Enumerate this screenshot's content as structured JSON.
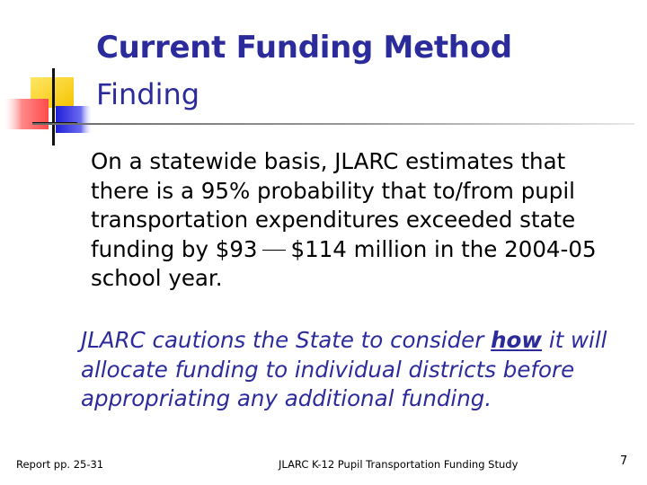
{
  "slide": {
    "title": "Current Funding Method",
    "subtitle": "Finding",
    "body": {
      "before_range": "On a statewide basis, JLARC estimates that there is a 95% probability that to/from pupil transportation expenditures exceeded state funding by $93",
      "after_range": "$114 million in the 2004-05 school year."
    },
    "caution": {
      "before": "JLARC cautions the State to consider ",
      "emphasis": "how",
      "after": " it will allocate funding to individual districts before appropriating any additional funding."
    },
    "footer": {
      "left": "Report pp. 25-31",
      "center": "JLARC K-12 Pupil Transportation Funding Study",
      "page_number": "7"
    }
  },
  "colors": {
    "accent_blue": "#2b2b9c",
    "logo_yellow": "#ffd83a",
    "logo_red": "#ff5a5a",
    "logo_blue": "#3a3ae0"
  }
}
